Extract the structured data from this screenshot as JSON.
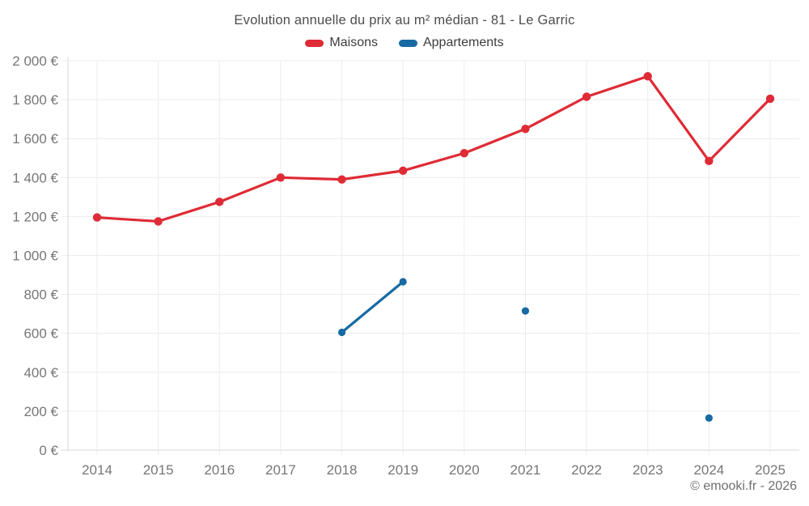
{
  "footer": {
    "copyright": "© emooki.fr - 2026"
  },
  "chart_data": {
    "type": "line",
    "title": "Evolution annuelle du prix au m² médian - 81 - Le Garric",
    "categories": [
      "2014",
      "2015",
      "2016",
      "2017",
      "2018",
      "2019",
      "2020",
      "2021",
      "2022",
      "2023",
      "2024",
      "2025"
    ],
    "series": [
      {
        "name": "Maisons",
        "color": "#df2b35",
        "marker_radius": 5.2,
        "values": [
          1195,
          1175,
          1275,
          1400,
          1390,
          1435,
          1525,
          1650,
          1815,
          1920,
          1485,
          1805
        ]
      },
      {
        "name": "Appartements",
        "color": "#1769a3",
        "marker_radius": 4.6,
        "values": [
          null,
          null,
          null,
          null,
          605,
          865,
          null,
          715,
          null,
          null,
          165,
          null
        ]
      }
    ],
    "ylim": [
      0,
      2000
    ],
    "yticks": [
      {
        "value": 0,
        "label": "0 €"
      },
      {
        "value": 200,
        "label": "200 €"
      },
      {
        "value": 400,
        "label": "400 €"
      },
      {
        "value": 600,
        "label": "600 €"
      },
      {
        "value": 800,
        "label": "800 €"
      },
      {
        "value": 1000,
        "label": "1 000 €"
      },
      {
        "value": 1200,
        "label": "1 200 €"
      },
      {
        "value": 1400,
        "label": "1 400 €"
      },
      {
        "value": 1600,
        "label": "1 600 €"
      },
      {
        "value": 1800,
        "label": "1 800 €"
      },
      {
        "value": 2000,
        "label": "2 000 €"
      }
    ],
    "grid": true,
    "legend_position": "top"
  }
}
